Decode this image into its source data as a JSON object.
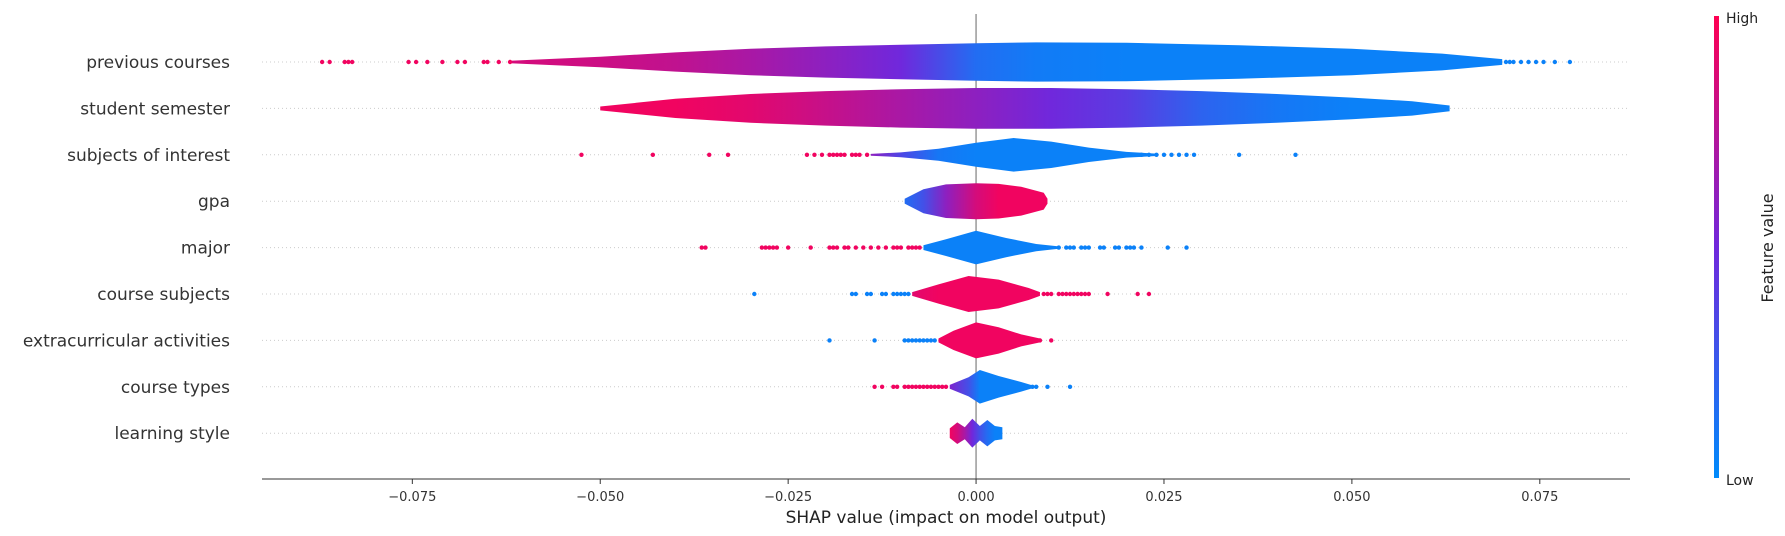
{
  "chart_data": {
    "type": "violin",
    "xlabel": "SHAP value (impact on model output)",
    "xticks": [
      -0.075,
      -0.05,
      -0.025,
      0.0,
      0.025,
      0.05,
      0.075
    ],
    "xtick_labels": [
      "−0.075",
      "−0.050",
      "−0.025",
      "0.000",
      "0.025",
      "0.050",
      "0.075"
    ],
    "xlim": [
      -0.095,
      0.087
    ],
    "colorbar": {
      "title": "Feature value",
      "high_label": "High",
      "low_label": "Low",
      "low_color": "#008bfb",
      "high_color": "#ff0052"
    },
    "features": [
      {
        "name": "previous courses",
        "shape": [
          [
            -0.062,
            0.05
          ],
          [
            -0.05,
            0.22
          ],
          [
            -0.04,
            0.4
          ],
          [
            -0.03,
            0.55
          ],
          [
            -0.02,
            0.65
          ],
          [
            -0.01,
            0.72
          ],
          [
            0.0,
            0.78
          ],
          [
            0.008,
            0.82
          ],
          [
            0.02,
            0.8
          ],
          [
            0.035,
            0.7
          ],
          [
            0.05,
            0.55
          ],
          [
            0.062,
            0.35
          ],
          [
            0.07,
            0.12
          ]
        ],
        "gradient": [
          0.85,
          0.82,
          0.78,
          0.7,
          0.6,
          0.5,
          0.15,
          0.08,
          0.05,
          0.05,
          0.05,
          0.05,
          0.05
        ],
        "outliers_left": [
          -0.087,
          -0.086,
          -0.084,
          -0.0835,
          -0.083,
          -0.0755,
          -0.0745,
          -0.073,
          -0.071,
          -0.069,
          -0.068,
          -0.0655,
          -0.065,
          -0.0635,
          -0.062
        ],
        "outliers_left_v": 0.95,
        "outliers_right": [
          0.0705,
          0.071,
          0.0715,
          0.0725,
          0.0735,
          0.0745,
          0.0755,
          0.077,
          0.079
        ],
        "outliers_right_v": 0.05
      },
      {
        "name": "student semester",
        "shape": [
          [
            -0.05,
            0.08
          ],
          [
            -0.04,
            0.4
          ],
          [
            -0.03,
            0.6
          ],
          [
            -0.02,
            0.72
          ],
          [
            -0.01,
            0.8
          ],
          [
            0.0,
            0.85
          ],
          [
            0.01,
            0.85
          ],
          [
            0.02,
            0.8
          ],
          [
            0.03,
            0.72
          ],
          [
            0.04,
            0.6
          ],
          [
            0.05,
            0.45
          ],
          [
            0.058,
            0.3
          ],
          [
            0.063,
            0.12
          ]
        ],
        "gradient": [
          0.95,
          0.95,
          0.9,
          0.8,
          0.7,
          0.6,
          0.5,
          0.4,
          0.2,
          0.1,
          0.05,
          0.05,
          0.05
        ]
      },
      {
        "name": "subjects of interest",
        "shape": [
          [
            -0.014,
            0.04
          ],
          [
            -0.01,
            0.1
          ],
          [
            -0.005,
            0.25
          ],
          [
            0.0,
            0.5
          ],
          [
            0.005,
            0.7
          ],
          [
            0.01,
            0.55
          ],
          [
            0.015,
            0.3
          ],
          [
            0.02,
            0.12
          ],
          [
            0.024,
            0.05
          ]
        ],
        "gradient": [
          0.6,
          0.35,
          0.1,
          0.05,
          0.05,
          0.05,
          0.05,
          0.05,
          0.05
        ],
        "outliers_left": [
          -0.0525,
          -0.043,
          -0.0355,
          -0.033,
          -0.0225,
          -0.0215,
          -0.0205,
          -0.0195,
          -0.019,
          -0.0185,
          -0.018,
          -0.0175,
          -0.0165,
          -0.016,
          -0.0155,
          -0.0145
        ],
        "outliers_left_v": 0.95,
        "outliers_right": [
          0.0205,
          0.021,
          0.022,
          0.023,
          0.024,
          0.025,
          0.026,
          0.027,
          0.028,
          0.029,
          0.035,
          0.0425
        ],
        "outliers_right_v": 0.05
      },
      {
        "name": "gpa",
        "shape": [
          [
            -0.0095,
            0.1
          ],
          [
            -0.007,
            0.5
          ],
          [
            -0.004,
            0.7
          ],
          [
            0.0,
            0.75
          ],
          [
            0.003,
            0.72
          ],
          [
            0.006,
            0.6
          ],
          [
            0.009,
            0.35
          ],
          [
            0.0095,
            0.1
          ]
        ],
        "gradient": [
          0.15,
          0.3,
          0.6,
          0.85,
          0.95,
          0.95,
          0.95,
          0.95
        ]
      },
      {
        "name": "major",
        "shape": [
          [
            -0.007,
            0.1
          ],
          [
            -0.004,
            0.35
          ],
          [
            0.0,
            0.7
          ],
          [
            0.004,
            0.4
          ],
          [
            0.008,
            0.15
          ],
          [
            0.011,
            0.05
          ]
        ],
        "gradient": [
          0.05,
          0.05,
          0.05,
          0.05,
          0.05,
          0.05
        ],
        "outliers_left": [
          -0.0365,
          -0.036,
          -0.0285,
          -0.028,
          -0.0275,
          -0.027,
          -0.0265,
          -0.025,
          -0.022,
          -0.0195,
          -0.019,
          -0.0185,
          -0.0175,
          -0.017,
          -0.016,
          -0.015,
          -0.014,
          -0.013,
          -0.012,
          -0.011,
          -0.0105,
          -0.01,
          -0.009,
          -0.0085,
          -0.008,
          -0.0075
        ],
        "outliers_left_v": 0.95,
        "outliers_right": [
          0.011,
          0.012,
          0.0125,
          0.013,
          0.014,
          0.0145,
          0.015,
          0.0165,
          0.017,
          0.0185,
          0.019,
          0.02,
          0.0205,
          0.021,
          0.022,
          0.0255,
          0.028
        ],
        "outliers_right_v": 0.05
      },
      {
        "name": "course subjects",
        "shape": [
          [
            -0.0085,
            0.08
          ],
          [
            -0.005,
            0.4
          ],
          [
            -0.001,
            0.75
          ],
          [
            0.003,
            0.6
          ],
          [
            0.007,
            0.25
          ],
          [
            0.0085,
            0.08
          ]
        ],
        "gradient": [
          0.9,
          0.95,
          0.95,
          0.95,
          0.95,
          0.95
        ],
        "outliers_left": [
          -0.0295,
          -0.0165,
          -0.016,
          -0.0145,
          -0.014,
          -0.0125,
          -0.012,
          -0.011,
          -0.0105,
          -0.01,
          -0.0095,
          -0.009
        ],
        "outliers_left_v": 0.05,
        "outliers_right": [
          0.008,
          0.009,
          0.0095,
          0.01,
          0.011,
          0.0115,
          0.012,
          0.0125,
          0.013,
          0.0135,
          0.014,
          0.0145,
          0.015,
          0.0175,
          0.0215,
          0.023
        ],
        "outliers_right_v": 0.95
      },
      {
        "name": "extracurricular activities",
        "shape": [
          [
            -0.005,
            0.08
          ],
          [
            -0.003,
            0.4
          ],
          [
            0.0,
            0.75
          ],
          [
            0.003,
            0.55
          ],
          [
            0.006,
            0.25
          ],
          [
            0.0085,
            0.08
          ]
        ],
        "gradient": [
          0.95,
          0.95,
          0.95,
          0.95,
          0.95,
          0.95
        ],
        "outliers_left": [
          -0.0195,
          -0.0135,
          -0.0095,
          -0.009,
          -0.0085,
          -0.008,
          -0.0075,
          -0.007,
          -0.0065,
          -0.006,
          -0.0055
        ],
        "outliers_left_v": 0.05,
        "outliers_right": [
          0.0085,
          0.01
        ],
        "outliers_right_v": 0.95
      },
      {
        "name": "course types",
        "shape": [
          [
            -0.0035,
            0.08
          ],
          [
            -0.001,
            0.4
          ],
          [
            0.0005,
            0.7
          ],
          [
            0.003,
            0.45
          ],
          [
            0.006,
            0.2
          ],
          [
            0.0075,
            0.06
          ]
        ],
        "gradient": [
          0.55,
          0.3,
          0.05,
          0.05,
          0.05,
          0.05
        ],
        "outliers_left": [
          -0.0135,
          -0.0125,
          -0.011,
          -0.0105,
          -0.0095,
          -0.009,
          -0.0085,
          -0.008,
          -0.0075,
          -0.007,
          -0.0065,
          -0.006,
          -0.0055,
          -0.005,
          -0.0045,
          -0.004
        ],
        "outliers_left_v": 0.95,
        "outliers_right": [
          0.0075,
          0.008,
          0.0095,
          0.0125
        ],
        "outliers_right_v": 0.05
      },
      {
        "name": "learning style",
        "shape": [
          [
            -0.0035,
            0.2
          ],
          [
            -0.0025,
            0.45
          ],
          [
            -0.0015,
            0.25
          ],
          [
            -0.0005,
            0.6
          ],
          [
            0.0005,
            0.3
          ],
          [
            0.0015,
            0.55
          ],
          [
            0.0025,
            0.3
          ],
          [
            0.0035,
            0.25
          ]
        ],
        "gradient": [
          0.95,
          0.85,
          0.7,
          0.5,
          0.3,
          0.15,
          0.05,
          0.05
        ]
      }
    ]
  }
}
